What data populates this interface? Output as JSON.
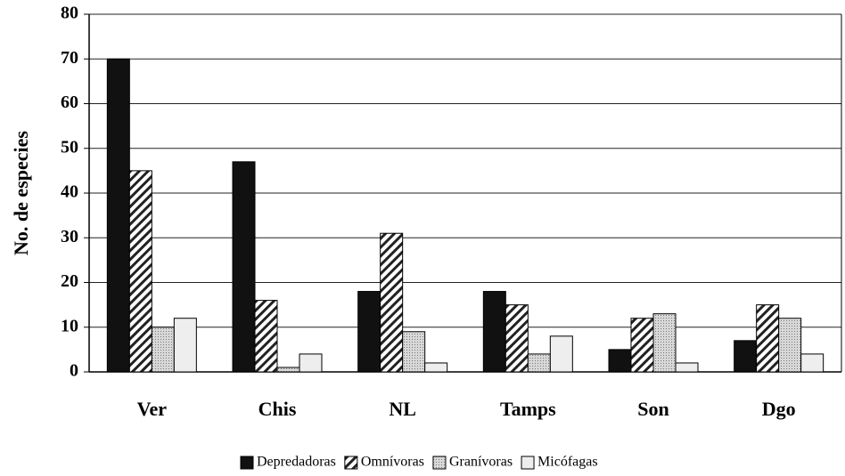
{
  "chart_data": {
    "type": "bar",
    "y_label": "No. de especies",
    "categories": [
      "Ver",
      "Chis",
      "NL",
      "Tamps",
      "Son",
      "Dgo"
    ],
    "series": [
      {
        "name": "Depredadoras",
        "color": "#111111",
        "pattern": "solid",
        "values": [
          70,
          47,
          18,
          18,
          5,
          7
        ]
      },
      {
        "name": "Omnívoras",
        "color": "#222222",
        "pattern": "hatch",
        "values": [
          45,
          16,
          31,
          15,
          12,
          15
        ]
      },
      {
        "name": "Granívoras",
        "color": "#bdbdbd",
        "pattern": "dots",
        "values": [
          10,
          1,
          9,
          4,
          13,
          12
        ]
      },
      {
        "name": "Micófagas",
        "color": "#eeeeee",
        "pattern": "solid",
        "values": [
          12,
          4,
          2,
          8,
          2,
          4
        ]
      }
    ],
    "ylim": [
      0,
      80
    ],
    "yticks": [
      0,
      10,
      20,
      30,
      40,
      50,
      60,
      70,
      80
    ],
    "grid": true,
    "legend": "bottom"
  }
}
